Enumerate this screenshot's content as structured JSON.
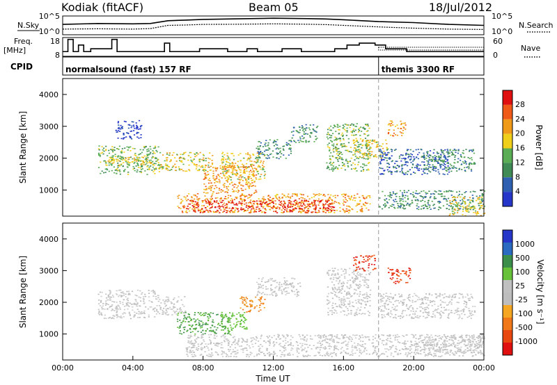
{
  "header": {
    "station": "Kodiak (fitACF)",
    "beam": "Beam 05",
    "date": "18/Jul/2012"
  },
  "colors": {
    "power_scale": [
      "#2536c9",
      "#2e5fb0",
      "#3f8a55",
      "#5aac55",
      "#f0cf1a",
      "#f09a1a",
      "#f05a18",
      "#e01010"
    ],
    "velocity_scale": [
      "#2536c9",
      "#2a6ac0",
      "#3b8f4a",
      "#67c23a",
      "#c0c0c0",
      "#bdbdbd",
      "#f5a623",
      "#f07818",
      "#e84810",
      "#e01010"
    ],
    "ground_scatter": "#b8b8b8"
  },
  "chart_data": [
    {
      "type": "line",
      "panel": "noise",
      "left_label": "N.Sky",
      "left_ticks": [
        "10^5",
        "10^0"
      ],
      "right_label": "N.Search",
      "right_ticks": [
        "10^5",
        "10^0"
      ],
      "x": [
        0,
        2,
        4,
        5,
        6,
        7,
        8,
        10,
        12,
        14,
        15,
        16,
        18,
        20,
        22,
        24
      ],
      "series": [
        {
          "values": [
            0.55,
            0.6,
            0.58,
            0.6,
            0.75,
            0.78,
            0.82,
            0.85,
            0.88,
            0.86,
            0.84,
            0.8,
            0.7,
            0.65,
            0.55,
            0.5
          ]
        },
        {
          "values": [
            0.3,
            0.32,
            0.3,
            0.33,
            0.5,
            0.52,
            0.55,
            0.56,
            0.58,
            0.56,
            0.54,
            0.5,
            0.42,
            0.35,
            0.3,
            0.28
          ]
        }
      ]
    },
    {
      "type": "line",
      "panel": "frequency",
      "left_label": "Freq.\n[MHz]",
      "left_ticks": [
        "18",
        "8"
      ],
      "right_label": "Nave",
      "right_ticks": [
        "60",
        "0"
      ],
      "freq_steps": [
        [
          0,
          10.5
        ],
        [
          0.3,
          17
        ],
        [
          0.6,
          10.5
        ],
        [
          0.9,
          14
        ],
        [
          1.2,
          10.5
        ],
        [
          1.6,
          12
        ],
        [
          2.8,
          17
        ],
        [
          3.1,
          10.5
        ],
        [
          5.8,
          15
        ],
        [
          6.1,
          10.5
        ],
        [
          7.8,
          12
        ],
        [
          9.4,
          10.5
        ],
        [
          10.5,
          12
        ],
        [
          11.1,
          10.5
        ],
        [
          12.5,
          12
        ],
        [
          13.6,
          10.5
        ],
        [
          15.5,
          12
        ],
        [
          16.2,
          14
        ],
        [
          16.9,
          15
        ],
        [
          17.8,
          14
        ],
        [
          18.4,
          12
        ],
        [
          19.6,
          10.5
        ],
        [
          24,
          10.5
        ]
      ],
      "ylim": [
        8,
        18
      ]
    },
    {
      "type": "table",
      "panel": "cpid",
      "label": "CPID",
      "segments": [
        {
          "start": 0,
          "end": 18,
          "text": "normalsound (fast) 157 RF"
        },
        {
          "start": 18,
          "end": 24,
          "text": "themis 3300 RF"
        }
      ]
    },
    {
      "type": "heatmap",
      "panel": "power",
      "ylabel": "Slant Range [km]",
      "colorbar_label": "Power [dB]",
      "colorbar_ticks": [
        "28",
        "24",
        "20",
        "16",
        "12",
        "8",
        "4"
      ],
      "ylim": [
        180,
        4500
      ],
      "yticks": [
        1000,
        2000,
        3000,
        4000
      ],
      "xlim": [
        0,
        24
      ],
      "blobs": [
        {
          "t0": 2.0,
          "t1": 5.5,
          "r0": 1500,
          "r1": 2400,
          "level": 4
        },
        {
          "t0": 2.5,
          "t1": 5.2,
          "r0": 1800,
          "r1": 2100,
          "level": 5
        },
        {
          "t0": 3.0,
          "t1": 4.5,
          "r0": 2600,
          "r1": 3200,
          "level": 1
        },
        {
          "t0": 5.5,
          "t1": 8.5,
          "r0": 1600,
          "r1": 2200,
          "level": 5
        },
        {
          "t0": 6.5,
          "t1": 17.5,
          "r0": 300,
          "r1": 900,
          "level": 6
        },
        {
          "t0": 7.0,
          "t1": 15.5,
          "r0": 300,
          "r1": 700,
          "level": 8
        },
        {
          "t0": 8.0,
          "t1": 11.0,
          "r0": 900,
          "r1": 1800,
          "level": 6
        },
        {
          "t0": 9.0,
          "t1": 11.5,
          "r0": 1300,
          "r1": 2200,
          "level": 5
        },
        {
          "t0": 11.0,
          "t1": 13.0,
          "r0": 2000,
          "r1": 2600,
          "level": 3
        },
        {
          "t0": 13.0,
          "t1": 14.5,
          "r0": 2500,
          "r1": 3100,
          "level": 3
        },
        {
          "t0": 15.0,
          "t1": 17.5,
          "r0": 1600,
          "r1": 3100,
          "level": 4
        },
        {
          "t0": 16.5,
          "t1": 18.5,
          "r0": 2000,
          "r1": 2600,
          "level": 5
        },
        {
          "t0": 18.0,
          "t1": 24.0,
          "r0": 400,
          "r1": 1000,
          "level": 3
        },
        {
          "t0": 18.0,
          "t1": 22.0,
          "r0": 1500,
          "r1": 2300,
          "level": 2
        },
        {
          "t0": 18.5,
          "t1": 19.5,
          "r0": 2700,
          "r1": 3200,
          "level": 6
        },
        {
          "t0": 20.5,
          "t1": 23.5,
          "r0": 1600,
          "r1": 2300,
          "level": 3
        },
        {
          "t0": 22.0,
          "t1": 24.0,
          "r0": 200,
          "r1": 800,
          "level": 5
        }
      ]
    },
    {
      "type": "heatmap",
      "panel": "velocity",
      "ylabel": "Slant Range [km]",
      "xlabel": "Time UT",
      "colorbar_label": "Velocity [m s⁻¹]",
      "colorbar_ticks": [
        "1000",
        "500",
        "100",
        "25",
        "-25",
        "-100",
        "-500",
        "-1000"
      ],
      "ylim": [
        180,
        4500
      ],
      "yticks": [
        1000,
        2000,
        3000,
        4000
      ],
      "xlim": [
        0,
        24
      ],
      "xticks": [
        "00:00",
        "04:00",
        "08:00",
        "12:00",
        "16:00",
        "20:00",
        "00:00"
      ],
      "blobs": [
        {
          "t0": 2.0,
          "t1": 5.5,
          "r0": 1500,
          "r1": 2400,
          "vcat": "gray"
        },
        {
          "t0": 5.5,
          "t1": 7.0,
          "r0": 1600,
          "r1": 2200,
          "vcat": "gray"
        },
        {
          "t0": 6.5,
          "t1": 9.5,
          "r0": 1000,
          "r1": 1700,
          "vcat": "green"
        },
        {
          "t0": 9.0,
          "t1": 10.5,
          "r0": 1100,
          "r1": 1700,
          "vcat": "lightgreen"
        },
        {
          "t0": 7.0,
          "t1": 24.0,
          "r0": 300,
          "r1": 1000,
          "vcat": "gray"
        },
        {
          "t0": 10.0,
          "t1": 11.5,
          "r0": 1700,
          "r1": 2200,
          "vcat": "orange"
        },
        {
          "t0": 11.0,
          "t1": 13.5,
          "r0": 2200,
          "r1": 2800,
          "vcat": "gray"
        },
        {
          "t0": 15.0,
          "t1": 17.5,
          "r0": 1600,
          "r1": 3100,
          "vcat": "gray"
        },
        {
          "t0": 16.5,
          "t1": 17.8,
          "r0": 3000,
          "r1": 3500,
          "vcat": "red"
        },
        {
          "t0": 18.5,
          "t1": 19.8,
          "r0": 2600,
          "r1": 3100,
          "vcat": "red"
        },
        {
          "t0": 18.0,
          "t1": 23.5,
          "r0": 1500,
          "r1": 2300,
          "vcat": "gray"
        },
        {
          "t0": 20.0,
          "t1": 24.0,
          "r0": 400,
          "r1": 1000,
          "vcat": "gray"
        }
      ]
    }
  ]
}
